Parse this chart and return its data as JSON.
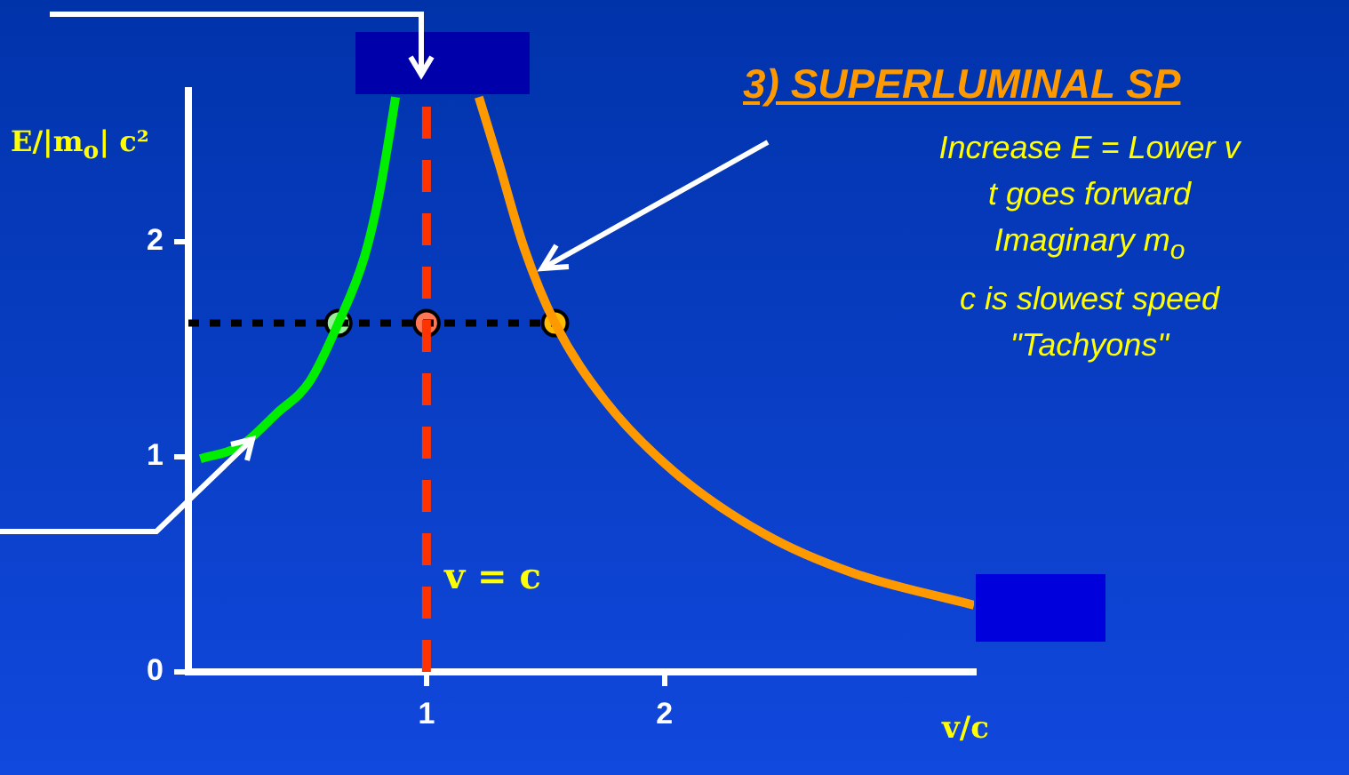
{
  "chart_data": {
    "type": "line",
    "title": "3) SUPERLUMINAL SP",
    "xlabel": "v/c",
    "ylabel": "E/|m$_{o}$| c²",
    "annotations": [
      "Increase E = Lower v",
      "t goes forward",
      "Imaginary m$_{o}$",
      "c is slowest speed",
      "\"Tachyons\""
    ],
    "xlim": [
      0,
      3.3
    ],
    "ylim": [
      0,
      2.7
    ],
    "xticks": [
      1,
      2
    ],
    "yticks": [
      0,
      1,
      2
    ],
    "grid": false,
    "legend": false,
    "ref_lines": [
      {
        "axis": "x",
        "value": 1,
        "label": "v = c",
        "color": "#ff3300",
        "line_style": "dashed"
      }
    ],
    "series": [
      {
        "color": "#00ee00",
        "x": [
          0.05,
          0.22,
          0.37,
          0.51,
          0.63,
          0.74,
          0.8,
          0.85,
          0.87
        ],
        "values": [
          0.99,
          1.05,
          1.2,
          1.35,
          1.62,
          1.93,
          2.21,
          2.53,
          2.67
        ]
      },
      {
        "color": "#ff9900",
        "x": [
          1.22,
          1.3,
          1.41,
          1.54,
          1.75,
          2.04,
          2.42,
          2.79,
          3.3
        ],
        "values": [
          2.67,
          2.38,
          1.97,
          1.62,
          1.26,
          0.93,
          0.64,
          0.46,
          0.31
        ]
      },
      {
        "type": "line",
        "color": "#000000",
        "line_style": "dotted",
        "x": [
          0,
          1.54
        ],
        "values": [
          1.62,
          1.62
        ]
      },
      {
        "type": "scatter",
        "marker": "circle",
        "x": [
          0.63,
          1,
          1.54
        ],
        "values": [
          1.62,
          1.62,
          1.62
        ],
        "colors": [
          "#99ee99",
          "#ff7755",
          "#ffbb00"
        ]
      }
    ]
  }
}
